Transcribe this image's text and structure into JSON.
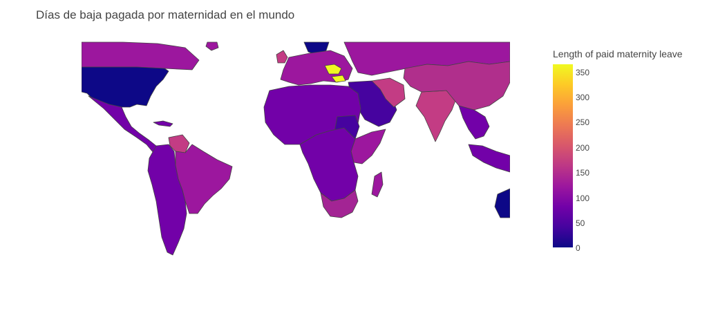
{
  "title": "Días de baja pagada por maternidad en el mundo",
  "colorbar": {
    "title": "Length of paid maternity leave",
    "range": [
      0,
      365
    ],
    "ticks": [
      "0",
      "50",
      "100",
      "150",
      "200",
      "250",
      "300",
      "350"
    ],
    "scale": [
      "#0d0887",
      "#46039f",
      "#7201a8",
      "#9c179e",
      "#bd3786",
      "#d8576b",
      "#ed7953",
      "#fb9f3a",
      "#fdca26",
      "#f0f921"
    ]
  },
  "map": {
    "projection": "equirectangular",
    "ocean": "#ffffff",
    "border": "#444444",
    "land_colors": {
      "north_america_north": "#9c179e",
      "usa": "#0d0887",
      "central_america": "#7201a8",
      "south_america": "#7201a8",
      "brazil": "#9c179e",
      "venezuela": "#c33c84",
      "europe": "#9c179e",
      "scandinavia": "#0d0887",
      "uk": "#c33c84",
      "balkans": "#f0f921",
      "russia": "#9c179e",
      "north_africa": "#7201a8",
      "sudan": "#46039f",
      "east_africa": "#9c179e",
      "southern_africa": "#a32494",
      "middle_east": "#46039f",
      "iran": "#c33c84",
      "india": "#c33c84",
      "china": "#b02f8c",
      "southeast_asia": "#7201a8",
      "australia": "#0d0887"
    }
  }
}
